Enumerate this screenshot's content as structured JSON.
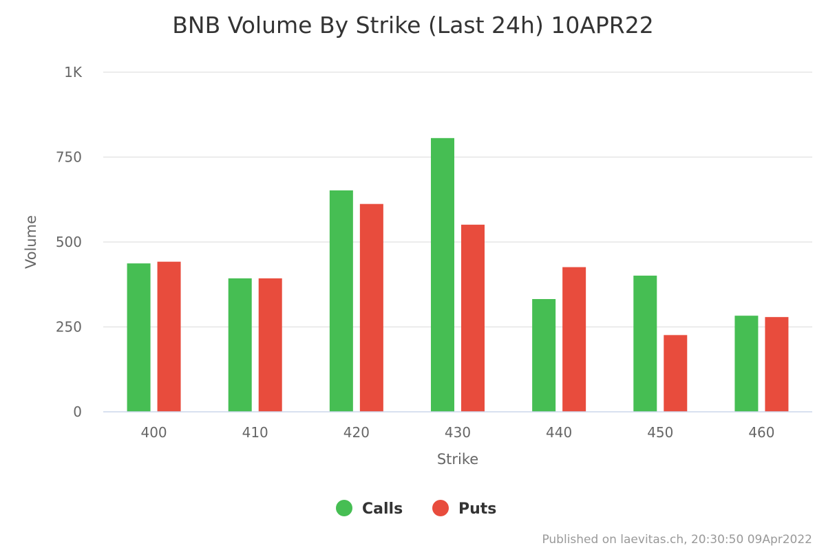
{
  "chart_data": {
    "type": "bar",
    "title": "BNB Volume By Strike (Last 24h) 10APR22",
    "xlabel": "Strike",
    "ylabel": "Volume",
    "categories": [
      "400",
      "410",
      "420",
      "430",
      "440",
      "450",
      "460"
    ],
    "series": [
      {
        "name": "Calls",
        "color": "#46be53",
        "values": [
          437,
          393,
          652,
          806,
          332,
          401,
          283
        ]
      },
      {
        "name": "Puts",
        "color": "#e84c3d",
        "values": [
          442,
          393,
          612,
          551,
          426,
          226,
          279
        ]
      }
    ],
    "ylim": [
      0,
      1000
    ],
    "yticks": [
      {
        "value": 0,
        "label": "0"
      },
      {
        "value": 250,
        "label": "250"
      },
      {
        "value": 500,
        "label": "500"
      },
      {
        "value": 750,
        "label": "750"
      },
      {
        "value": 1000,
        "label": "1K"
      }
    ],
    "grid": true,
    "legend_position": "bottom-center"
  },
  "credit": "Published on laevitas.ch, 20:30:50 09Apr2022"
}
